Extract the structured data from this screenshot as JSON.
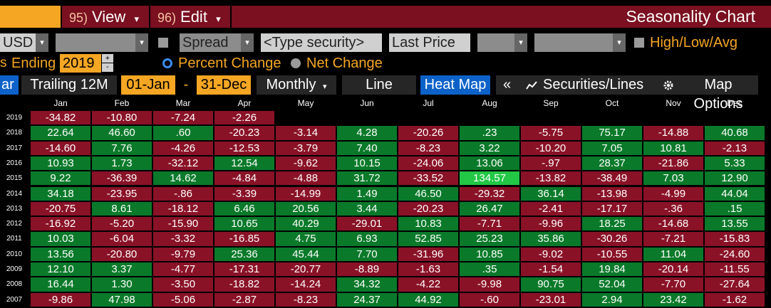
{
  "header": {
    "title": "Seasonality Chart",
    "view_num": "95)",
    "view_label": "View",
    "edit_num": "96)",
    "edit_label": "Edit",
    "dropdown_glyph": "▾"
  },
  "controls": {
    "currency": "USD",
    "spread_label": "Spread",
    "security_placeholder": "<Type security>",
    "field_value": "Last Price",
    "high_low_avg_label": "High/Low/Avg",
    "ending_label": "Ending",
    "ending_year": "2019",
    "percent_change_label": "Percent Change",
    "net_change_label": "Net Change",
    "selected_mode": "Percent Change"
  },
  "toolbar": {
    "bar_label": "ar",
    "trailing_label": "Trailing 12M",
    "start_date": "01-Jan",
    "range_sep": "-",
    "end_date": "31-Dec",
    "period_label": "Monthly",
    "line_label": "Line",
    "heatmap_label": "Heat Map",
    "collapse_glyph": "«",
    "securities_label": "Securities/Lines",
    "map_options_label": "Map Options"
  },
  "colors": {
    "red": "#8a1227",
    "green": "#0a7a2a",
    "bright_green": "#22c745",
    "accent_orange": "#f5a623",
    "active_blue": "#0d62c9",
    "header_bar": "#7a1020"
  },
  "chart_data": {
    "type": "heatmap",
    "title": "Seasonality Chart",
    "columns": [
      "Jan",
      "Feb",
      "Mar",
      "Apr",
      "May",
      "Jun",
      "Jul",
      "Aug",
      "Sep",
      "Oct",
      "Nov",
      "Dec"
    ],
    "rows": [
      {
        "year": "2019",
        "values": [
          "-34.82",
          "-10.80",
          "-7.24",
          "-2.26",
          null,
          null,
          null,
          null,
          null,
          null,
          null,
          null
        ]
      },
      {
        "year": "2018",
        "values": [
          "22.64",
          "46.60",
          ".60",
          "-20.23",
          "-3.14",
          "4.28",
          "-20.26",
          ".23",
          "-5.75",
          "75.17",
          "-14.88",
          "40.68"
        ]
      },
      {
        "year": "2017",
        "values": [
          "-14.60",
          "7.76",
          "-4.26",
          "-12.53",
          "-3.79",
          "7.40",
          "-8.23",
          "3.22",
          "-10.20",
          "7.05",
          "10.81",
          "-2.13"
        ]
      },
      {
        "year": "2016",
        "values": [
          "10.93",
          "1.73",
          "-32.12",
          "12.54",
          "-9.62",
          "10.15",
          "-24.06",
          "13.06",
          "-.97",
          "28.37",
          "-21.86",
          "5.33"
        ]
      },
      {
        "year": "2015",
        "values": [
          "9.22",
          "-36.39",
          "14.62",
          "-4.84",
          "-4.88",
          "31.72",
          "-33.52",
          "134.57",
          "-13.82",
          "-38.49",
          "7.03",
          "12.90"
        ]
      },
      {
        "year": "2014",
        "values": [
          "34.18",
          "-23.95",
          "-.86",
          "-3.39",
          "-14.99",
          "1.49",
          "46.50",
          "-29.32",
          "36.14",
          "-13.98",
          "-4.99",
          "44.04"
        ]
      },
      {
        "year": "2013",
        "values": [
          "-20.75",
          "8.61",
          "-18.12",
          "6.46",
          "20.56",
          "3.44",
          "-20.23",
          "26.47",
          "-2.41",
          "-17.17",
          "-.36",
          ".15"
        ]
      },
      {
        "year": "2012",
        "values": [
          "-16.92",
          "-5.20",
          "-15.90",
          "10.65",
          "40.29",
          "-29.01",
          "10.83",
          "-7.71",
          "-9.96",
          "18.25",
          "-14.68",
          "13.55"
        ]
      },
      {
        "year": "2011",
        "values": [
          "10.03",
          "-6.04",
          "-3.32",
          "-16.85",
          "4.75",
          "6.93",
          "52.85",
          "25.23",
          "35.86",
          "-30.26",
          "-7.21",
          "-15.83"
        ]
      },
      {
        "year": "2010",
        "values": [
          "13.56",
          "-20.80",
          "-9.79",
          "25.36",
          "45.44",
          "7.70",
          "-31.96",
          "10.85",
          "-9.02",
          "-10.55",
          "11.04",
          "-24.60"
        ]
      },
      {
        "year": "2009",
        "values": [
          "12.10",
          "3.37",
          "-4.77",
          "-17.31",
          "-20.77",
          "-8.89",
          "-1.63",
          ".35",
          "-1.54",
          "19.84",
          "-20.14",
          "-11.55"
        ]
      },
      {
        "year": "2008",
        "values": [
          "16.44",
          "1.30",
          "-3.50",
          "-18.82",
          "-14.24",
          "34.32",
          "-4.22",
          "-9.98",
          "90.75",
          "52.04",
          "-7.70",
          "-27.64"
        ]
      },
      {
        "year": "2007",
        "values": [
          "-9.86",
          "47.98",
          "-5.06",
          "-2.87",
          "-8.23",
          "24.37",
          "44.92",
          "-.60",
          "-23.01",
          "2.94",
          "23.42",
          "-1.62"
        ]
      }
    ]
  }
}
